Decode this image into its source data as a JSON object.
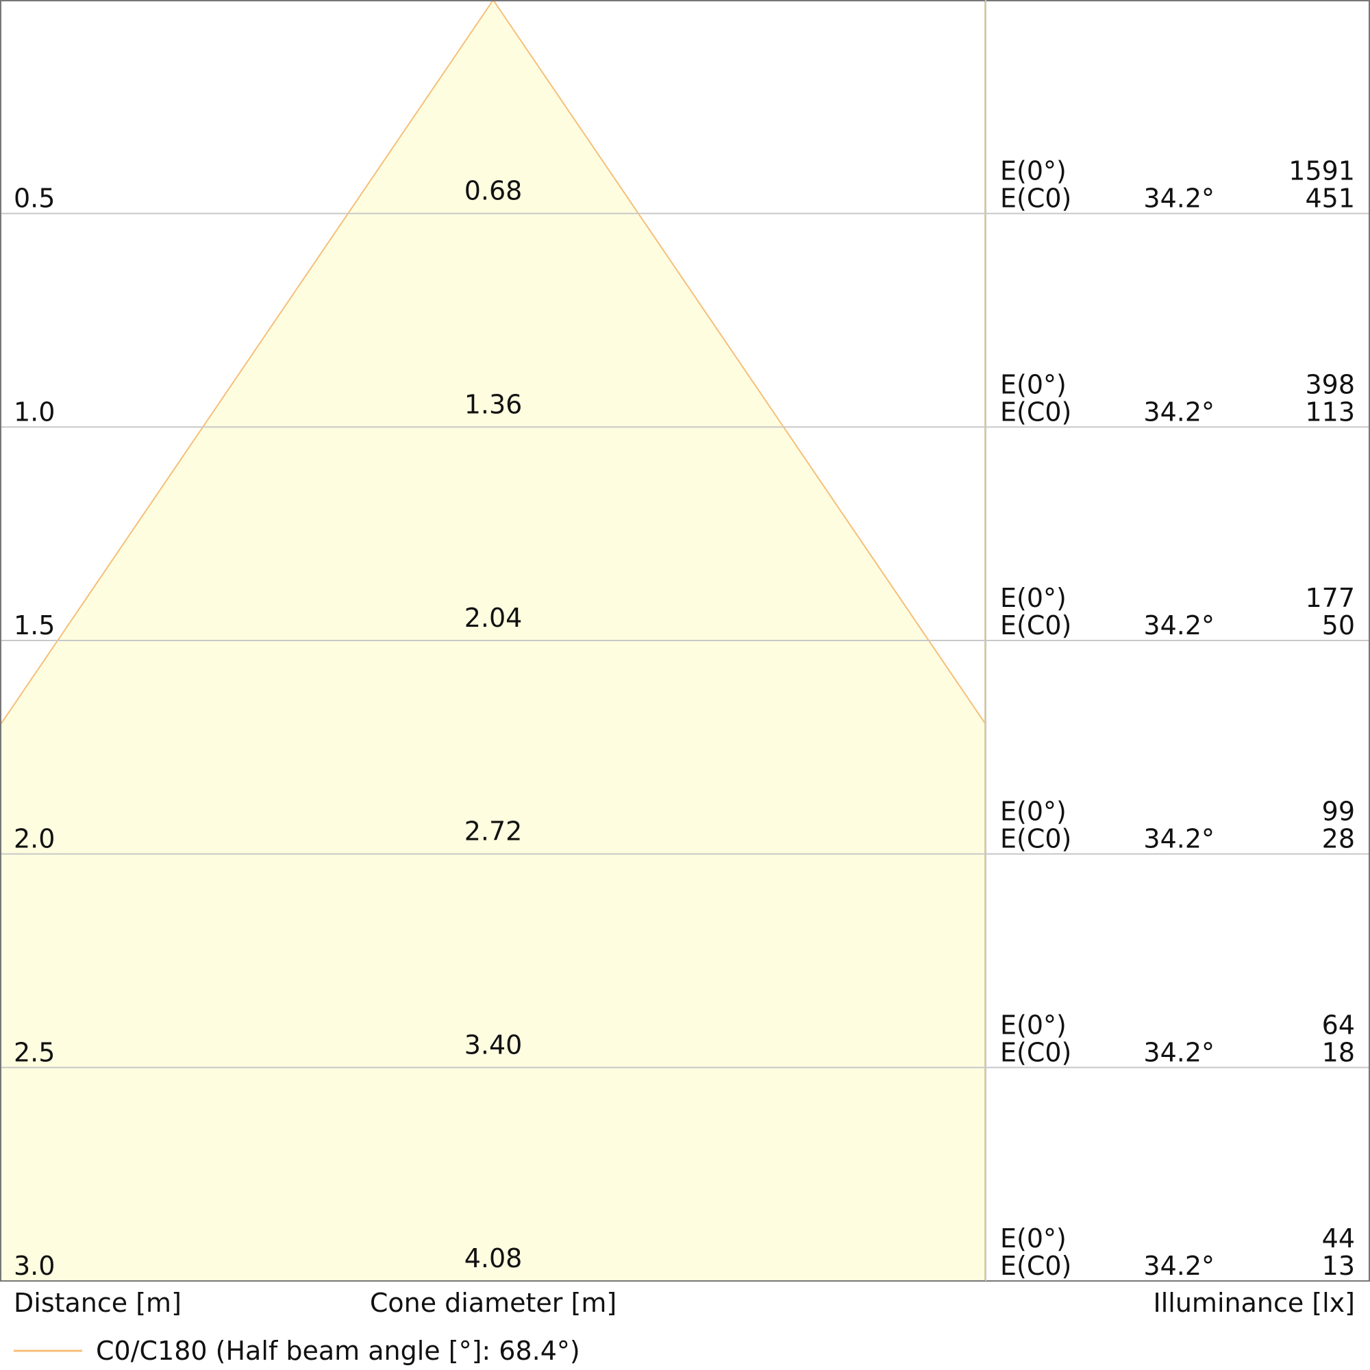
{
  "rows": [
    {
      "distance": "0.5",
      "diameter": "0.68",
      "e0_label": "E(0°)",
      "e0": "1591",
      "ec0_label": "E(C0)",
      "angle": "34.2°",
      "ec0": "451"
    },
    {
      "distance": "1.0",
      "diameter": "1.36",
      "e0_label": "E(0°)",
      "e0": "398",
      "ec0_label": "E(C0)",
      "angle": "34.2°",
      "ec0": "113"
    },
    {
      "distance": "1.5",
      "diameter": "2.04",
      "e0_label": "E(0°)",
      "e0": "177",
      "ec0_label": "E(C0)",
      "angle": "34.2°",
      "ec0": "50"
    },
    {
      "distance": "2.0",
      "diameter": "2.72",
      "e0_label": "E(0°)",
      "e0": "99",
      "ec0_label": "E(C0)",
      "angle": "34.2°",
      "ec0": "28"
    },
    {
      "distance": "2.5",
      "diameter": "3.40",
      "e0_label": "E(0°)",
      "e0": "64",
      "ec0_label": "E(C0)",
      "angle": "34.2°",
      "ec0": "18"
    },
    {
      "distance": "3.0",
      "diameter": "4.08",
      "e0_label": "E(0°)",
      "e0": "44",
      "ec0_label": "E(C0)",
      "angle": "34.2°",
      "ec0": "13"
    }
  ],
  "labels": {
    "distance": "Distance [m]",
    "diameter": "Cone diameter [m]",
    "illuminance": "Illuminance [lx]"
  },
  "legend": "C0/C180 (Half beam angle [°]: 68.4°)"
}
